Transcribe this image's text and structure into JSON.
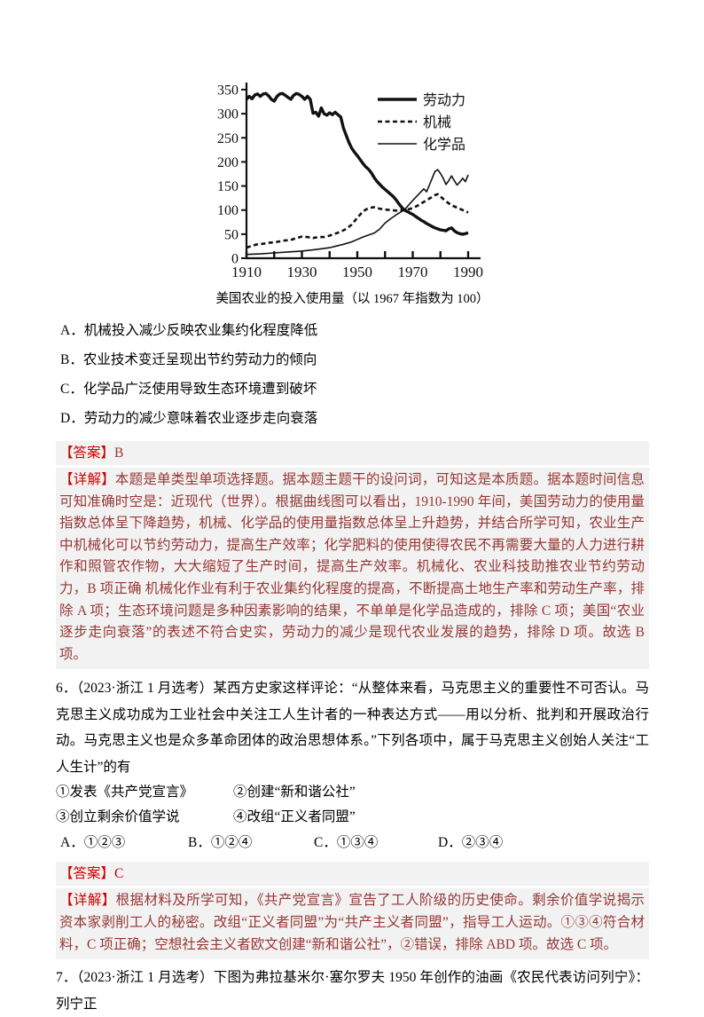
{
  "colors": {
    "answer_label_red": "#cc0000",
    "explanation_maroon": "#953734",
    "highlight_bg": "#f2f2f2",
    "chart_ink": "#111111"
  },
  "chart": {
    "caption": "美国农业的投入使用量（以 1967 年指数为 100）",
    "chart_data": {
      "type": "line",
      "title": "美国农业的投入使用量（以 1967 年指数为 100）",
      "xlabel": "",
      "ylabel": "",
      "xlim": [
        1910,
        1994
      ],
      "ylim": [
        0,
        350
      ],
      "xticks": [
        1910,
        1930,
        1950,
        1970,
        1990
      ],
      "xticks_minor_step": 10,
      "yticks": [
        0,
        50,
        100,
        150,
        200,
        250,
        300,
        350
      ],
      "grid": false,
      "legend_position": "top-right-inside",
      "series": [
        {
          "name": "劳动力",
          "style": "solid-thick",
          "points": [
            [
              1910,
              330
            ],
            [
              1911,
              336
            ],
            [
              1912,
              331
            ],
            [
              1913,
              339
            ],
            [
              1914,
              341
            ],
            [
              1915,
              336
            ],
            [
              1916,
              341
            ],
            [
              1917,
              342
            ],
            [
              1918,
              337
            ],
            [
              1919,
              330
            ],
            [
              1920,
              326
            ],
            [
              1921,
              336
            ],
            [
              1922,
              341
            ],
            [
              1923,
              342
            ],
            [
              1924,
              338
            ],
            [
              1925,
              334
            ],
            [
              1926,
              330
            ],
            [
              1927,
              338
            ],
            [
              1928,
              342
            ],
            [
              1929,
              340
            ],
            [
              1930,
              336
            ],
            [
              1931,
              330
            ],
            [
              1932,
              336
            ],
            [
              1933,
              330
            ],
            [
              1934,
              301
            ],
            [
              1935,
              303
            ],
            [
              1936,
              295
            ],
            [
              1937,
              312
            ],
            [
              1938,
              300
            ],
            [
              1939,
              297
            ],
            [
              1940,
              302
            ],
            [
              1941,
              298
            ],
            [
              1942,
              303
            ],
            [
              1943,
              298
            ],
            [
              1944,
              293
            ],
            [
              1945,
              270
            ],
            [
              1946,
              255
            ],
            [
              1947,
              240
            ],
            [
              1948,
              228
            ],
            [
              1949,
              220
            ],
            [
              1950,
              213
            ],
            [
              1951,
              205
            ],
            [
              1952,
              197
            ],
            [
              1953,
              190
            ],
            [
              1954,
              185
            ],
            [
              1955,
              178
            ],
            [
              1956,
              168
            ],
            [
              1957,
              160
            ],
            [
              1958,
              154
            ],
            [
              1959,
              148
            ],
            [
              1960,
              143
            ],
            [
              1961,
              138
            ],
            [
              1962,
              133
            ],
            [
              1963,
              128
            ],
            [
              1964,
              121
            ],
            [
              1965,
              113
            ],
            [
              1966,
              106
            ],
            [
              1967,
              100
            ],
            [
              1968,
              97
            ],
            [
              1969,
              94
            ],
            [
              1970,
              91
            ],
            [
              1971,
              87
            ],
            [
              1972,
              83
            ],
            [
              1973,
              79
            ],
            [
              1974,
              76
            ],
            [
              1975,
              72
            ],
            [
              1976,
              69
            ],
            [
              1977,
              66
            ],
            [
              1978,
              63
            ],
            [
              1979,
              61
            ],
            [
              1980,
              59
            ],
            [
              1981,
              58
            ],
            [
              1982,
              57
            ],
            [
              1983,
              61
            ],
            [
              1984,
              63
            ],
            [
              1985,
              57
            ],
            [
              1986,
              53
            ],
            [
              1987,
              51
            ],
            [
              1988,
              50
            ],
            [
              1989,
              51
            ],
            [
              1990,
              53
            ]
          ]
        },
        {
          "name": "机械",
          "style": "dashed",
          "points": [
            [
              1910,
              22
            ],
            [
              1912,
              26
            ],
            [
              1914,
              29
            ],
            [
              1916,
              30
            ],
            [
              1918,
              32
            ],
            [
              1920,
              33
            ],
            [
              1922,
              35
            ],
            [
              1924,
              37
            ],
            [
              1926,
              38
            ],
            [
              1928,
              42
            ],
            [
              1930,
              45
            ],
            [
              1932,
              44
            ],
            [
              1934,
              42
            ],
            [
              1936,
              44
            ],
            [
              1938,
              44
            ],
            [
              1940,
              47
            ],
            [
              1942,
              51
            ],
            [
              1944,
              55
            ],
            [
              1946,
              61
            ],
            [
              1948,
              70
            ],
            [
              1950,
              84
            ],
            [
              1952,
              97
            ],
            [
              1954,
              104
            ],
            [
              1956,
              106
            ],
            [
              1958,
              103
            ],
            [
              1960,
              101
            ],
            [
              1962,
              100
            ],
            [
              1964,
              99
            ],
            [
              1966,
              100
            ],
            [
              1968,
              101
            ],
            [
              1970,
              104
            ],
            [
              1972,
              110
            ],
            [
              1974,
              117
            ],
            [
              1976,
              124
            ],
            [
              1978,
              131
            ],
            [
              1979,
              133
            ],
            [
              1980,
              128
            ],
            [
              1982,
              118
            ],
            [
              1984,
              110
            ],
            [
              1986,
              105
            ],
            [
              1988,
              100
            ],
            [
              1990,
              95
            ]
          ]
        },
        {
          "name": "化学品",
          "style": "solid-thin",
          "points": [
            [
              1910,
              8
            ],
            [
              1915,
              9
            ],
            [
              1920,
              11
            ],
            [
              1925,
              13
            ],
            [
              1930,
              15
            ],
            [
              1935,
              18
            ],
            [
              1940,
              22
            ],
            [
              1945,
              29
            ],
            [
              1948,
              34
            ],
            [
              1950,
              39
            ],
            [
              1952,
              44
            ],
            [
              1954,
              48
            ],
            [
              1956,
              52
            ],
            [
              1958,
              60
            ],
            [
              1960,
              73
            ],
            [
              1962,
              82
            ],
            [
              1964,
              90
            ],
            [
              1966,
              97
            ],
            [
              1967,
              100
            ],
            [
              1968,
              107
            ],
            [
              1970,
              120
            ],
            [
              1972,
              132
            ],
            [
              1974,
              144
            ],
            [
              1975,
              138
            ],
            [
              1976,
              152
            ],
            [
              1977,
              166
            ],
            [
              1978,
              180
            ],
            [
              1979,
              184
            ],
            [
              1980,
              176
            ],
            [
              1981,
              166
            ],
            [
              1982,
              153
            ],
            [
              1983,
              161
            ],
            [
              1984,
              171
            ],
            [
              1985,
              161
            ],
            [
              1986,
              152
            ],
            [
              1987,
              158
            ],
            [
              1988,
              166
            ],
            [
              1989,
              159
            ],
            [
              1990,
              173
            ]
          ]
        }
      ]
    }
  },
  "question5": {
    "options": [
      "A．机械投入减少反映农业集约化程度降低",
      "B．农业技术变迁呈现出节约劳动力的倾向",
      "C．化学品广泛使用导致生态环境遭到破坏",
      "D．劳动力的减少意味着农业逐步走向衰落"
    ],
    "answer_label": "【答案】",
    "answer": "B",
    "explanation_label": "【详解】",
    "explanation": "本题是单类型单项选择题。据本题主题干的设问词，可知这是本质题。据本题时间信息可知准确时空是：近现代（世界）。根据曲线图可以看出，1910-1990 年间，美国劳动力的使用量指数总体呈下降趋势，机械、化学品的使用量指数总体呈上升趋势，并结合所学可知，农业生产中机械化可以节约劳动力，提高生产效率；化学肥料的使用使得农民不再需要大量的人力进行耕作和照管农作物，大大缩短了生产时间，提高生产效率。机械化、农业科技助推农业节约劳动力，B 项正确 机械化作业有利于农业集约化程度的提高，不断提高土地生产率和劳动生产率，排除 A 项；生态环境问题是多种因素影响的结果，不单单是化学品造成的，排除 C 项；美国“农业逐步走向衰落”的表述不符合史实，劳动力的减少是现代农业发展的趋势，排除 D 项。故选 B 项。"
  },
  "question6": {
    "stem": "6．（2023·浙江 1 月选考）某西方史家这样评论：“从整体来看，马克思主义的重要性不可否认。马克思主义成功成为工业社会中关注工人生计者的一种表达方式——用以分析、批判和开展政治行动。马克思主义也是众多革命团体的政治思想体系。”下列各项中，属于马克思主义创始人关注“工人生计”的有",
    "items": [
      [
        "①发表《共产党宣言》",
        "②创建“新和谐公社”"
      ],
      [
        "③创立剩余价值学说",
        "④改组“正义者同盟”"
      ]
    ],
    "choices": [
      "A．①②③",
      "B．①②④",
      "C．①③④",
      "D．②③④"
    ],
    "answer_label": "【答案】",
    "answer": "C",
    "explanation_label": "【详解】",
    "explanation": "根据材料及所学可知，《共产党宣言》宣告了工人阶级的历史使命。剩余价值学说揭示 资本家剥削工人的秘密。改组“正义者同盟”为“共产主义者同盟”，指导工人运动。①③④符合材料，C 项正确；空想社会主义者欧文创建“新和谐公社”，②错误，排除 ABD 项。故选 C 项。"
  },
  "question7": {
    "stem": "7．（2023·浙江 1 月选考）下图为弗拉基米尔·塞尔罗夫 1950 年创作的油画《农民代表访问列宁》：列宁正"
  }
}
